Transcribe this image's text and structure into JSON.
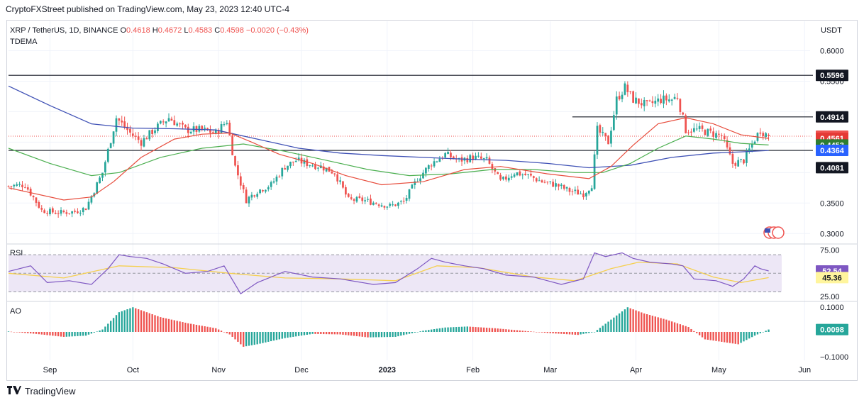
{
  "header": {
    "publisher_line": "CryptoFXStreet published on TradingView.com, May 23, 2023 12:40 UTC-4"
  },
  "footer": {
    "brand": "TradingView",
    "logo_icon": "tradingview-logo-icon"
  },
  "colors": {
    "up": "#26a69a",
    "down": "#ef5350",
    "ema_red": "#e74c3c",
    "ema_green": "#4caf50",
    "ma_blue": "#3f51b5",
    "rsi": "#7e57c2",
    "rsi_ma": "#f5d04f",
    "rsi_band": "#ede7f6",
    "grid": "#f0f3fa",
    "text": "#131722",
    "muted": "#787b86"
  },
  "chart_data": {
    "type": "candlestick",
    "symbol_line": {
      "pair": "XRP / TetherUS, 1D, BINANCE",
      "o_label": "O",
      "o": "0.4618",
      "h_label": "H",
      "h": "0.4672",
      "l_label": "L",
      "l": "0.4583",
      "c_label": "C",
      "c": "0.4598",
      "change": "−0.0020 (−0.43%)"
    },
    "indicator_label": "TDEMA",
    "currency": "USDT",
    "ylim": [
      0.284,
      0.632
    ],
    "y_ticks": [
      0.3,
      0.35,
      0.55,
      0.6
    ],
    "y_tick_labels": [
      "0.3000",
      "0.3500",
      "0.5500",
      "0.6000"
    ],
    "x_months": [
      {
        "label": "Sep",
        "day": 15
      },
      {
        "label": "Oct",
        "day": 45
      },
      {
        "label": "Nov",
        "day": 76
      },
      {
        "label": "Dec",
        "day": 106
      },
      {
        "label": "2023",
        "day": 137,
        "bold": true
      },
      {
        "label": "Feb",
        "day": 168
      },
      {
        "label": "Mar",
        "day": 196
      },
      {
        "label": "Apr",
        "day": 227
      },
      {
        "label": "May",
        "day": 257
      },
      {
        "label": "Jun",
        "day": 288
      }
    ],
    "price_axis_labels": [
      {
        "value": 0.5596,
        "label": "0.5596",
        "bg": "#131722",
        "fg": "#ffffff"
      },
      {
        "value": 0.4914,
        "label": "0.4914",
        "bg": "#131722",
        "fg": "#ffffff"
      },
      {
        "value": 0.4598,
        "label": "0.4598",
        "bg": "#ef5350",
        "fg": "#ffffff"
      },
      {
        "value": 0.4561,
        "label": "0.4561",
        "bg": "#e53935",
        "fg": "#ffffff"
      },
      {
        "value": 0.4453,
        "label": "0.4453",
        "bg": "#2e7d32",
        "fg": "#ffffff"
      },
      {
        "value": 0.4364,
        "label": "0.4364",
        "bg": "#2962ff",
        "fg": "#ffffff"
      },
      {
        "value": 0.4081,
        "label": "0.4081",
        "bg": "#131722",
        "fg": "#ffffff"
      }
    ],
    "horizontal_lines": [
      {
        "value": 0.5596,
        "from_day": 0,
        "to_day": 290
      },
      {
        "value": 0.4914,
        "from_day": 204,
        "to_day": 290
      },
      {
        "value": 0.4364,
        "from_day": 0,
        "to_day": 290
      }
    ],
    "current_price": 0.4598,
    "price_path": [
      [
        0,
        0.378
      ],
      [
        6,
        0.38
      ],
      [
        12,
        0.338
      ],
      [
        18,
        0.334
      ],
      [
        24,
        0.336
      ],
      [
        28,
        0.342
      ],
      [
        34,
        0.4
      ],
      [
        39,
        0.49
      ],
      [
        44,
        0.465
      ],
      [
        48,
        0.45
      ],
      [
        53,
        0.472
      ],
      [
        58,
        0.49
      ],
      [
        64,
        0.47
      ],
      [
        70,
        0.47
      ],
      [
        75,
        0.465
      ],
      [
        79,
        0.485
      ],
      [
        82,
        0.41
      ],
      [
        86,
        0.355
      ],
      [
        90,
        0.37
      ],
      [
        95,
        0.38
      ],
      [
        100,
        0.41
      ],
      [
        104,
        0.42
      ],
      [
        108,
        0.415
      ],
      [
        113,
        0.41
      ],
      [
        118,
        0.4
      ],
      [
        123,
        0.355
      ],
      [
        128,
        0.355
      ],
      [
        133,
        0.35
      ],
      [
        138,
        0.345
      ],
      [
        143,
        0.352
      ],
      [
        148,
        0.39
      ],
      [
        153,
        0.415
      ],
      [
        158,
        0.43
      ],
      [
        163,
        0.42
      ],
      [
        168,
        0.425
      ],
      [
        173,
        0.42
      ],
      [
        178,
        0.385
      ],
      [
        183,
        0.4
      ],
      [
        188,
        0.395
      ],
      [
        193,
        0.385
      ],
      [
        198,
        0.38
      ],
      [
        203,
        0.37
      ],
      [
        208,
        0.365
      ],
      [
        211,
        0.38
      ],
      [
        213,
        0.47
      ],
      [
        217,
        0.45
      ],
      [
        220,
        0.52
      ],
      [
        223,
        0.54
      ],
      [
        226,
        0.52
      ],
      [
        231,
        0.51
      ],
      [
        236,
        0.52
      ],
      [
        240,
        0.52
      ],
      [
        242,
        0.525
      ],
      [
        245,
        0.47
      ],
      [
        250,
        0.47
      ],
      [
        254,
        0.465
      ],
      [
        258,
        0.46
      ],
      [
        262,
        0.415
      ],
      [
        266,
        0.42
      ],
      [
        270,
        0.455
      ],
      [
        272,
        0.47
      ],
      [
        275,
        0.4598
      ]
    ],
    "ema_red_path": [
      [
        0,
        0.375
      ],
      [
        20,
        0.355
      ],
      [
        30,
        0.36
      ],
      [
        38,
        0.385
      ],
      [
        48,
        0.425
      ],
      [
        60,
        0.455
      ],
      [
        70,
        0.463
      ],
      [
        80,
        0.465
      ],
      [
        88,
        0.45
      ],
      [
        98,
        0.43
      ],
      [
        110,
        0.415
      ],
      [
        122,
        0.395
      ],
      [
        135,
        0.38
      ],
      [
        150,
        0.385
      ],
      [
        165,
        0.405
      ],
      [
        178,
        0.41
      ],
      [
        195,
        0.398
      ],
      [
        210,
        0.39
      ],
      [
        218,
        0.41
      ],
      [
        226,
        0.445
      ],
      [
        235,
        0.48
      ],
      [
        245,
        0.49
      ],
      [
        255,
        0.48
      ],
      [
        265,
        0.462
      ],
      [
        275,
        0.4561
      ]
    ],
    "ema_green_path": [
      [
        0,
        0.44
      ],
      [
        15,
        0.415
      ],
      [
        30,
        0.395
      ],
      [
        40,
        0.4
      ],
      [
        55,
        0.425
      ],
      [
        70,
        0.44
      ],
      [
        85,
        0.447
      ],
      [
        100,
        0.435
      ],
      [
        115,
        0.42
      ],
      [
        130,
        0.405
      ],
      [
        145,
        0.395
      ],
      [
        160,
        0.398
      ],
      [
        175,
        0.405
      ],
      [
        190,
        0.405
      ],
      [
        205,
        0.4
      ],
      [
        215,
        0.4
      ],
      [
        225,
        0.415
      ],
      [
        235,
        0.44
      ],
      [
        245,
        0.46
      ],
      [
        255,
        0.455
      ],
      [
        265,
        0.448
      ],
      [
        275,
        0.4453
      ]
    ],
    "ma_blue_path": [
      [
        0,
        0.542
      ],
      [
        15,
        0.51
      ],
      [
        30,
        0.48
      ],
      [
        45,
        0.473
      ],
      [
        60,
        0.472
      ],
      [
        75,
        0.47
      ],
      [
        90,
        0.455
      ],
      [
        105,
        0.44
      ],
      [
        120,
        0.432
      ],
      [
        135,
        0.428
      ],
      [
        150,
        0.425
      ],
      [
        165,
        0.422
      ],
      [
        180,
        0.42
      ],
      [
        195,
        0.415
      ],
      [
        210,
        0.408
      ],
      [
        225,
        0.412
      ],
      [
        240,
        0.425
      ],
      [
        255,
        0.432
      ],
      [
        265,
        0.434
      ],
      [
        275,
        0.4364
      ]
    ],
    "rsi": {
      "label": "RSI",
      "ylim": [
        22,
        80
      ],
      "band": [
        30,
        70
      ],
      "tick_labels": [
        {
          "value": 75,
          "label": "75.00"
        },
        {
          "value": 25,
          "label": "25.00"
        }
      ],
      "value_labels": [
        {
          "value": 52.54,
          "label": "52.54",
          "bg": "#7e57c2",
          "fg": "#ffffff"
        },
        {
          "value": 45.36,
          "label": "45.36",
          "bg": "#fff59d",
          "fg": "#131722"
        }
      ],
      "rsi_path": [
        [
          0,
          52
        ],
        [
          8,
          58
        ],
        [
          14,
          40
        ],
        [
          22,
          42
        ],
        [
          30,
          38
        ],
        [
          36,
          55
        ],
        [
          40,
          70
        ],
        [
          44,
          68
        ],
        [
          50,
          66
        ],
        [
          56,
          60
        ],
        [
          64,
          50
        ],
        [
          72,
          52
        ],
        [
          78,
          58
        ],
        [
          84,
          28
        ],
        [
          90,
          40
        ],
        [
          100,
          52
        ],
        [
          110,
          46
        ],
        [
          120,
          44
        ],
        [
          132,
          38
        ],
        [
          140,
          40
        ],
        [
          148,
          55
        ],
        [
          153,
          66
        ],
        [
          158,
          62
        ],
        [
          165,
          58
        ],
        [
          172,
          55
        ],
        [
          180,
          48
        ],
        [
          190,
          46
        ],
        [
          200,
          38
        ],
        [
          208,
          44
        ],
        [
          212,
          72
        ],
        [
          216,
          68
        ],
        [
          222,
          72
        ],
        [
          226,
          66
        ],
        [
          232,
          62
        ],
        [
          240,
          60
        ],
        [
          244,
          58
        ],
        [
          248,
          44
        ],
        [
          256,
          42
        ],
        [
          262,
          36
        ],
        [
          266,
          44
        ],
        [
          270,
          58
        ],
        [
          272,
          55
        ],
        [
          275,
          52.54
        ]
      ],
      "rsi_ma_path": [
        [
          0,
          50
        ],
        [
          20,
          45
        ],
        [
          40,
          58
        ],
        [
          60,
          56
        ],
        [
          80,
          50
        ],
        [
          100,
          45
        ],
        [
          120,
          44
        ],
        [
          140,
          42
        ],
        [
          155,
          58
        ],
        [
          170,
          56
        ],
        [
          190,
          46
        ],
        [
          205,
          42
        ],
        [
          218,
          55
        ],
        [
          228,
          62
        ],
        [
          242,
          60
        ],
        [
          255,
          46
        ],
        [
          265,
          40
        ],
        [
          275,
          45.36
        ]
      ]
    },
    "ao": {
      "label": "AO",
      "ylim": [
        -0.115,
        0.115
      ],
      "tick_labels": [
        {
          "value": 0.1,
          "label": "0.1000"
        },
        {
          "value": -0.1,
          "label": "−0.1000"
        }
      ],
      "value_labels": [
        {
          "value": 0.0098,
          "label": "0.0098",
          "bg": "#26a69a",
          "fg": "#ffffff"
        }
      ],
      "ao_path": [
        [
          0,
          0.002
        ],
        [
          10,
          -0.008
        ],
        [
          20,
          -0.02
        ],
        [
          28,
          -0.015
        ],
        [
          34,
          0.01
        ],
        [
          40,
          0.08
        ],
        [
          45,
          0.1
        ],
        [
          55,
          0.06
        ],
        [
          65,
          0.035
        ],
        [
          75,
          0.015
        ],
        [
          80,
          -0.01
        ],
        [
          85,
          -0.06
        ],
        [
          90,
          -0.05
        ],
        [
          100,
          -0.025
        ],
        [
          110,
          -0.008
        ],
        [
          120,
          -0.01
        ],
        [
          130,
          -0.022
        ],
        [
          140,
          -0.02
        ],
        [
          150,
          0.005
        ],
        [
          158,
          0.018
        ],
        [
          166,
          0.022
        ],
        [
          176,
          0.015
        ],
        [
          186,
          0.005
        ],
        [
          196,
          -0.005
        ],
        [
          206,
          -0.012
        ],
        [
          212,
          0.0
        ],
        [
          218,
          0.05
        ],
        [
          224,
          0.1
        ],
        [
          230,
          0.075
        ],
        [
          238,
          0.05
        ],
        [
          246,
          0.02
        ],
        [
          252,
          -0.03
        ],
        [
          258,
          -0.04
        ],
        [
          264,
          -0.05
        ],
        [
          270,
          -0.015
        ],
        [
          275,
          0.0098
        ]
      ]
    }
  }
}
